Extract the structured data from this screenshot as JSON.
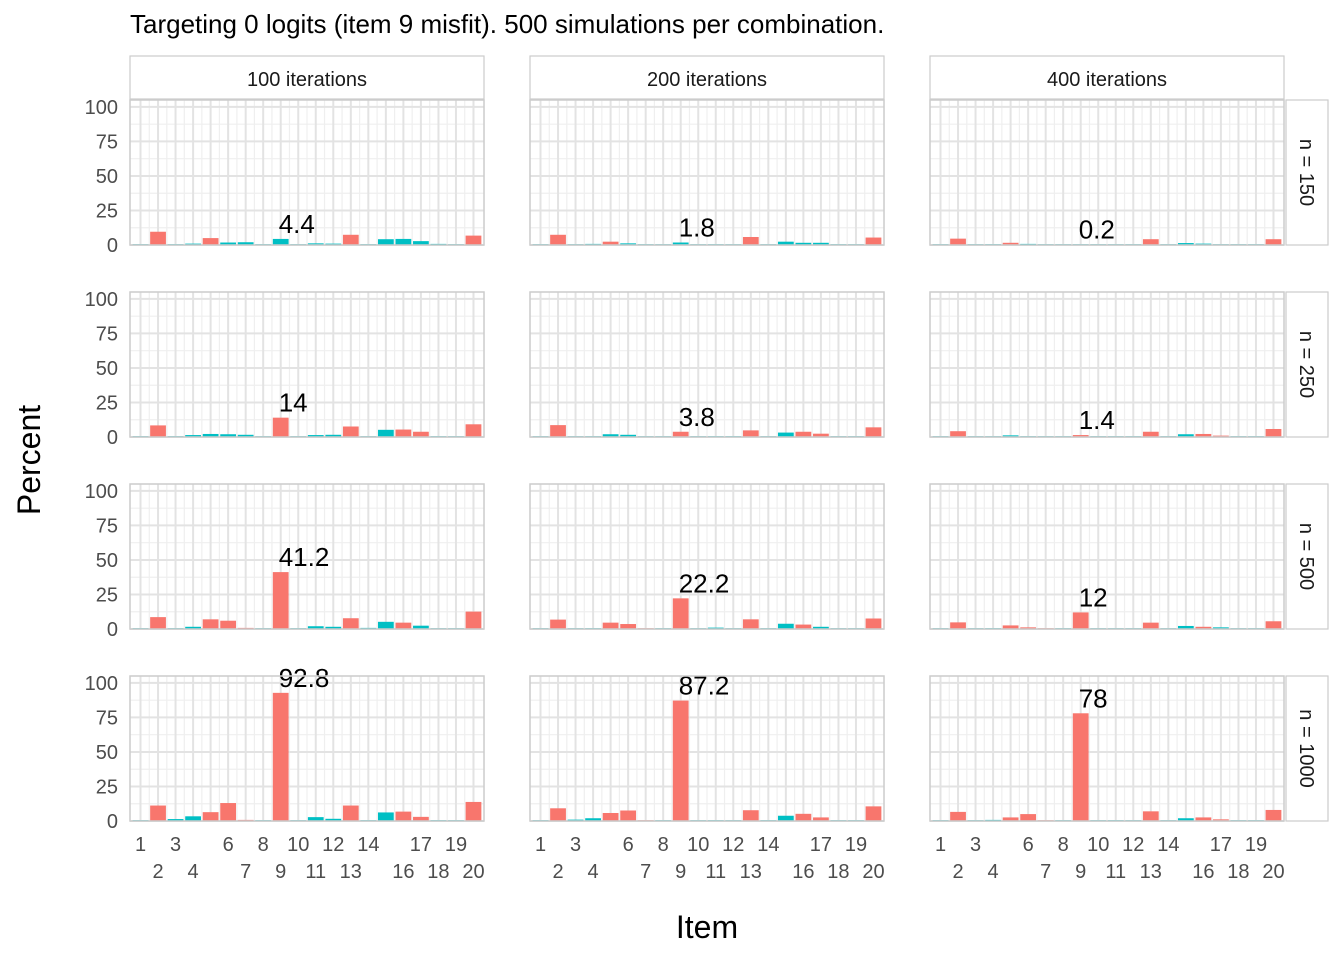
{
  "chart_data": {
    "type": "bar",
    "title": "Targeting 0 logits (item 9 misfit). 500 simulations per combination.",
    "xlabel": "Item",
    "ylabel": "Percent",
    "ylim": [
      0,
      105
    ],
    "yticks": [
      0,
      25,
      50,
      75,
      100
    ],
    "grid": true,
    "legend": "none",
    "colors": {
      "flagged": "#F8766D",
      "not_flagged": "#00BFC4"
    },
    "categories": [
      "1",
      "2",
      "3",
      "4",
      "5",
      "6",
      "7",
      "8",
      "9",
      "10",
      "11",
      "12",
      "13",
      "14",
      "15",
      "16",
      "17",
      "18",
      "19",
      "20"
    ],
    "x_tick_labels_top": [
      "1",
      "3",
      "6",
      "8",
      "10",
      "12",
      "14",
      "17",
      "19"
    ],
    "x_tick_labels_bottom": [
      "2",
      "4",
      "7",
      "9",
      "11",
      "13",
      "16",
      "18",
      "20"
    ],
    "column_labels": [
      "100 iterations",
      "200 iterations",
      "400 iterations"
    ],
    "row_labels": [
      "n = 150",
      "n = 250",
      "n = 500",
      "n = 1000"
    ],
    "bar_colors": {
      "n = 150": [
        "not_flagged",
        "flagged",
        "not_flagged",
        "not_flagged",
        "flagged",
        "not_flagged",
        "not_flagged",
        "not_flagged",
        "not_flagged",
        "not_flagged",
        "not_flagged",
        "not_flagged",
        "flagged",
        "not_flagged",
        "not_flagged",
        "not_flagged",
        "not_flagged",
        "not_flagged",
        "not_flagged",
        "flagged"
      ],
      "n = 250": [
        "not_flagged",
        "flagged",
        "not_flagged",
        "not_flagged",
        "not_flagged",
        "not_flagged",
        "not_flagged",
        "not_flagged",
        "flagged",
        "not_flagged",
        "not_flagged",
        "not_flagged",
        "flagged",
        "not_flagged",
        "not_flagged",
        "flagged",
        "flagged",
        "not_flagged",
        "not_flagged",
        "flagged"
      ],
      "n = 500": [
        "not_flagged",
        "flagged",
        "not_flagged",
        "not_flagged",
        "flagged",
        "flagged",
        "flagged",
        "not_flagged",
        "flagged",
        "not_flagged",
        "not_flagged",
        "not_flagged",
        "flagged",
        "not_flagged",
        "not_flagged",
        "flagged",
        "not_flagged",
        "not_flagged",
        "not_flagged",
        "flagged"
      ],
      "n = 1000": [
        "not_flagged",
        "flagged",
        "not_flagged",
        "not_flagged",
        "flagged",
        "flagged",
        "flagged",
        "not_flagged",
        "flagged",
        "not_flagged",
        "not_flagged",
        "not_flagged",
        "flagged",
        "not_flagged",
        "not_flagged",
        "flagged",
        "flagged",
        "not_flagged",
        "not_flagged",
        "flagged"
      ]
    },
    "panels": [
      {
        "row": "n = 150",
        "col": "100 iterations",
        "item9_label": "4.4",
        "values": [
          0.4,
          9.6,
          0.6,
          1.0,
          5.0,
          1.8,
          2.0,
          0.6,
          4.4,
          0.2,
          1.2,
          1.0,
          7.4,
          0.6,
          4.2,
          4.4,
          2.8,
          0.8,
          0.4,
          6.8
        ]
      },
      {
        "row": "n = 150",
        "col": "200 iterations",
        "item9_label": "1.8",
        "values": [
          0,
          7.4,
          0,
          0.8,
          2.4,
          1.2,
          0.6,
          0.4,
          1.8,
          0.4,
          0.6,
          0.4,
          5.8,
          0.4,
          2.4,
          1.6,
          1.6,
          0.6,
          0,
          5.4
        ]
      },
      {
        "row": "n = 150",
        "col": "400 iterations",
        "item9_label": "0.2",
        "values": [
          0,
          4.6,
          0,
          0.6,
          1.6,
          0.8,
          0.2,
          0.2,
          0.2,
          0,
          0.4,
          0.2,
          4.2,
          0.2,
          1.4,
          1.0,
          0.4,
          0.2,
          0,
          4.2
        ]
      },
      {
        "row": "n = 250",
        "col": "100 iterations",
        "item9_label": "14",
        "values": [
          0.4,
          8.4,
          0.6,
          1.4,
          2.2,
          2.0,
          1.6,
          0.4,
          14.0,
          0.2,
          1.4,
          1.6,
          7.6,
          0.4,
          5.2,
          5.4,
          3.8,
          0.6,
          0.4,
          9.2
        ]
      },
      {
        "row": "n = 250",
        "col": "200 iterations",
        "item9_label": "3.8",
        "values": [
          0,
          8.6,
          0,
          0.6,
          2.0,
          1.6,
          0.4,
          0.2,
          3.8,
          0.2,
          0.6,
          0.6,
          4.8,
          0.2,
          3.2,
          3.8,
          2.4,
          0.4,
          0,
          7.0
        ]
      },
      {
        "row": "n = 250",
        "col": "400 iterations",
        "item9_label": "1.4",
        "values": [
          0,
          4.2,
          0,
          0.4,
          1.2,
          0.6,
          0.4,
          0,
          1.4,
          0,
          0.4,
          0.2,
          3.8,
          0.2,
          2.0,
          2.2,
          1.0,
          0.2,
          0,
          5.8
        ]
      },
      {
        "row": "n = 500",
        "col": "100 iterations",
        "item9_label": "41.2",
        "values": [
          0.4,
          8.6,
          0.6,
          1.6,
          7.0,
          6.0,
          0.8,
          0.4,
          41.2,
          0.6,
          2.0,
          1.6,
          7.8,
          0.8,
          5.2,
          4.6,
          2.4,
          0.4,
          0.4,
          12.6
        ]
      },
      {
        "row": "n = 500",
        "col": "200 iterations",
        "item9_label": "22.2",
        "values": [
          0,
          6.8,
          0,
          0.6,
          4.6,
          3.6,
          0.4,
          0.2,
          22.2,
          0.2,
          1.0,
          0.4,
          7.0,
          0.6,
          3.8,
          3.2,
          1.6,
          0.4,
          0,
          7.6
        ]
      },
      {
        "row": "n = 500",
        "col": "400 iterations",
        "item9_label": "12",
        "values": [
          0,
          4.8,
          0,
          0.6,
          2.6,
          1.2,
          0.4,
          0,
          12.0,
          0.2,
          0.4,
          0.2,
          4.6,
          0.2,
          2.2,
          1.6,
          1.2,
          0.2,
          0,
          5.6
        ]
      },
      {
        "row": "n = 1000",
        "col": "100 iterations",
        "item9_label": "92.8",
        "values": [
          0.4,
          11.2,
          1.4,
          3.4,
          6.4,
          13.0,
          0.8,
          0.4,
          92.8,
          0.4,
          2.8,
          1.6,
          11.2,
          0.6,
          6.2,
          6.8,
          3.0,
          0.6,
          0.4,
          13.8
        ]
      },
      {
        "row": "n = 1000",
        "col": "200 iterations",
        "item9_label": "87.2",
        "values": [
          0,
          9.2,
          1.0,
          2.0,
          5.8,
          7.6,
          0.4,
          0.4,
          87.2,
          0.4,
          0.6,
          0.4,
          7.8,
          0.6,
          3.8,
          5.2,
          2.6,
          0.4,
          0,
          10.6
        ]
      },
      {
        "row": "n = 1000",
        "col": "400 iterations",
        "item9_label": "78",
        "values": [
          0,
          6.6,
          0.4,
          0.8,
          2.6,
          5.0,
          0.4,
          0,
          78.0,
          0.2,
          0.6,
          0.4,
          7.0,
          0.4,
          2.0,
          2.6,
          1.2,
          0.4,
          0,
          8.0
        ]
      }
    ]
  }
}
